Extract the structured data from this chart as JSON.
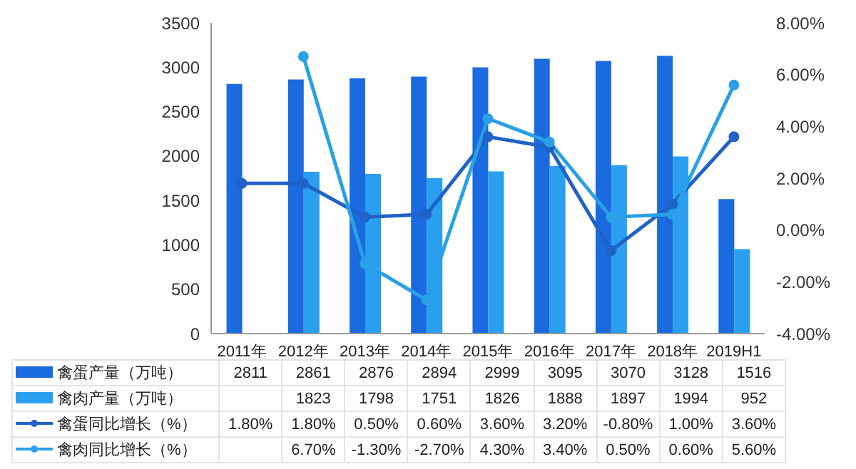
{
  "chart_data": {
    "type": "bar",
    "categories": [
      "2011年",
      "2012年",
      "2013年",
      "2014年",
      "2015年",
      "2016年",
      "2017年",
      "2018年",
      "2019H1"
    ],
    "series": [
      {
        "name": "禽蛋产量（万吨）",
        "color": "#1a6be0",
        "values": [
          2811,
          2861,
          2876,
          2894,
          2999,
          3095,
          3070,
          3128,
          1516
        ],
        "value_labels": [
          "2811",
          "2861",
          "2876",
          "2894",
          "2999",
          "3095",
          "3070",
          "3128",
          "1516"
        ]
      },
      {
        "name": "禽肉产量（万吨）",
        "color": "#2a9ff0",
        "values": [
          null,
          1823,
          1798,
          1751,
          1826,
          1888,
          1897,
          1994,
          952
        ],
        "value_labels": [
          null,
          "1823",
          "1798",
          "1751",
          "1826",
          "1888",
          "1897",
          "1994",
          "952"
        ]
      },
      {
        "name": "禽蛋同比增长（%）",
        "type": "line",
        "axis": "y2",
        "color": "#1f62c8",
        "values": [
          1.8,
          1.8,
          0.5,
          0.6,
          3.6,
          3.2,
          -0.8,
          1.0,
          3.6
        ],
        "value_labels": [
          "1.80%",
          "1.80%",
          "0.50%",
          "0.60%",
          "3.60%",
          "3.20%",
          "-0.80%",
          "1.00%",
          "3.60%"
        ]
      },
      {
        "name": "禽肉同比增长（%）",
        "type": "line",
        "axis": "y2",
        "color": "#2aa0e6",
        "values": [
          null,
          6.7,
          -1.3,
          -2.7,
          4.3,
          3.4,
          0.5,
          0.6,
          5.6
        ],
        "value_labels": [
          null,
          "6.70%",
          "-1.30%",
          "-2.70%",
          "4.30%",
          "3.40%",
          "0.50%",
          "0.60%",
          "5.60%"
        ]
      }
    ],
    "ylim": [
      0,
      3500
    ],
    "yticks": [
      0,
      500,
      1000,
      1500,
      2000,
      2500,
      3000,
      3500
    ],
    "y2lim": [
      -4,
      8
    ],
    "y2ticks": [
      {
        "value": -4,
        "label": "-4.00%"
      },
      {
        "value": -2,
        "label": "-2.00%"
      },
      {
        "value": 0,
        "label": "0.00%"
      },
      {
        "value": 2,
        "label": "2.00%"
      },
      {
        "value": 4,
        "label": "4.00%"
      },
      {
        "value": 6,
        "label": "6.00%"
      },
      {
        "value": 8,
        "label": "8.00%"
      }
    ],
    "grid": false,
    "legend": "bottom",
    "marker": "circle",
    "line_style": "solid"
  }
}
